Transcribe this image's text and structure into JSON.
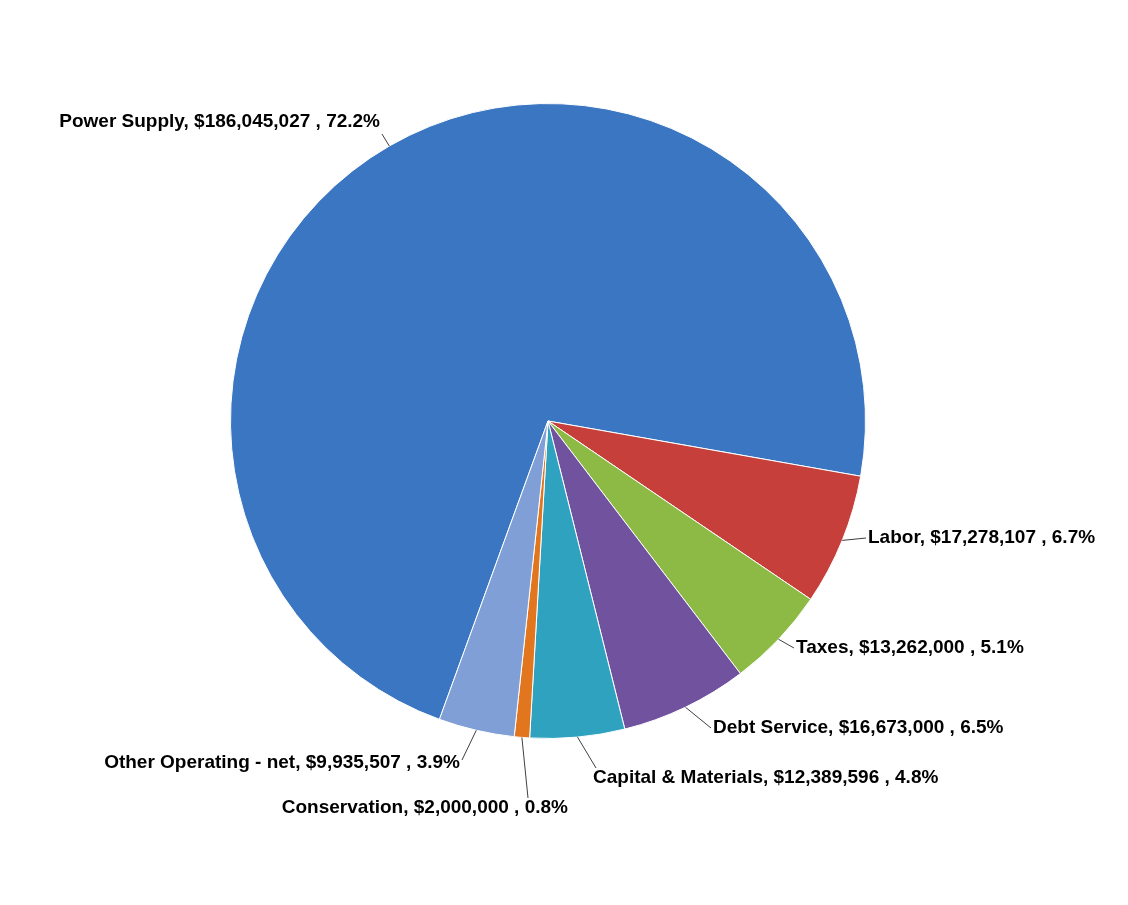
{
  "chart_data": {
    "type": "pie",
    "categories": [
      "Power Supply",
      "Labor",
      "Taxes",
      "Debt Service",
      "Capital & Materials",
      "Conservation",
      "Other Operating - net"
    ],
    "values": [
      186045027,
      17278107,
      13262000,
      16673000,
      12389596,
      2000000,
      9935507
    ],
    "value_labels": [
      "$186,045,027 , 72.2%",
      "$17,278,107 , 6.7%",
      "$13,262,000 , 5.1%",
      "$16,673,000 , 6.5%",
      "$12,389,596 , 4.8%",
      "$2,000,000 , 0.8%",
      "$9,935,507 , 3.9%"
    ],
    "colors": [
      "#3b76c2",
      "#c63f3a",
      "#8cba45",
      "#71529e",
      "#2fa2bf",
      "#e2761f",
      "#7f9fd6"
    ]
  }
}
